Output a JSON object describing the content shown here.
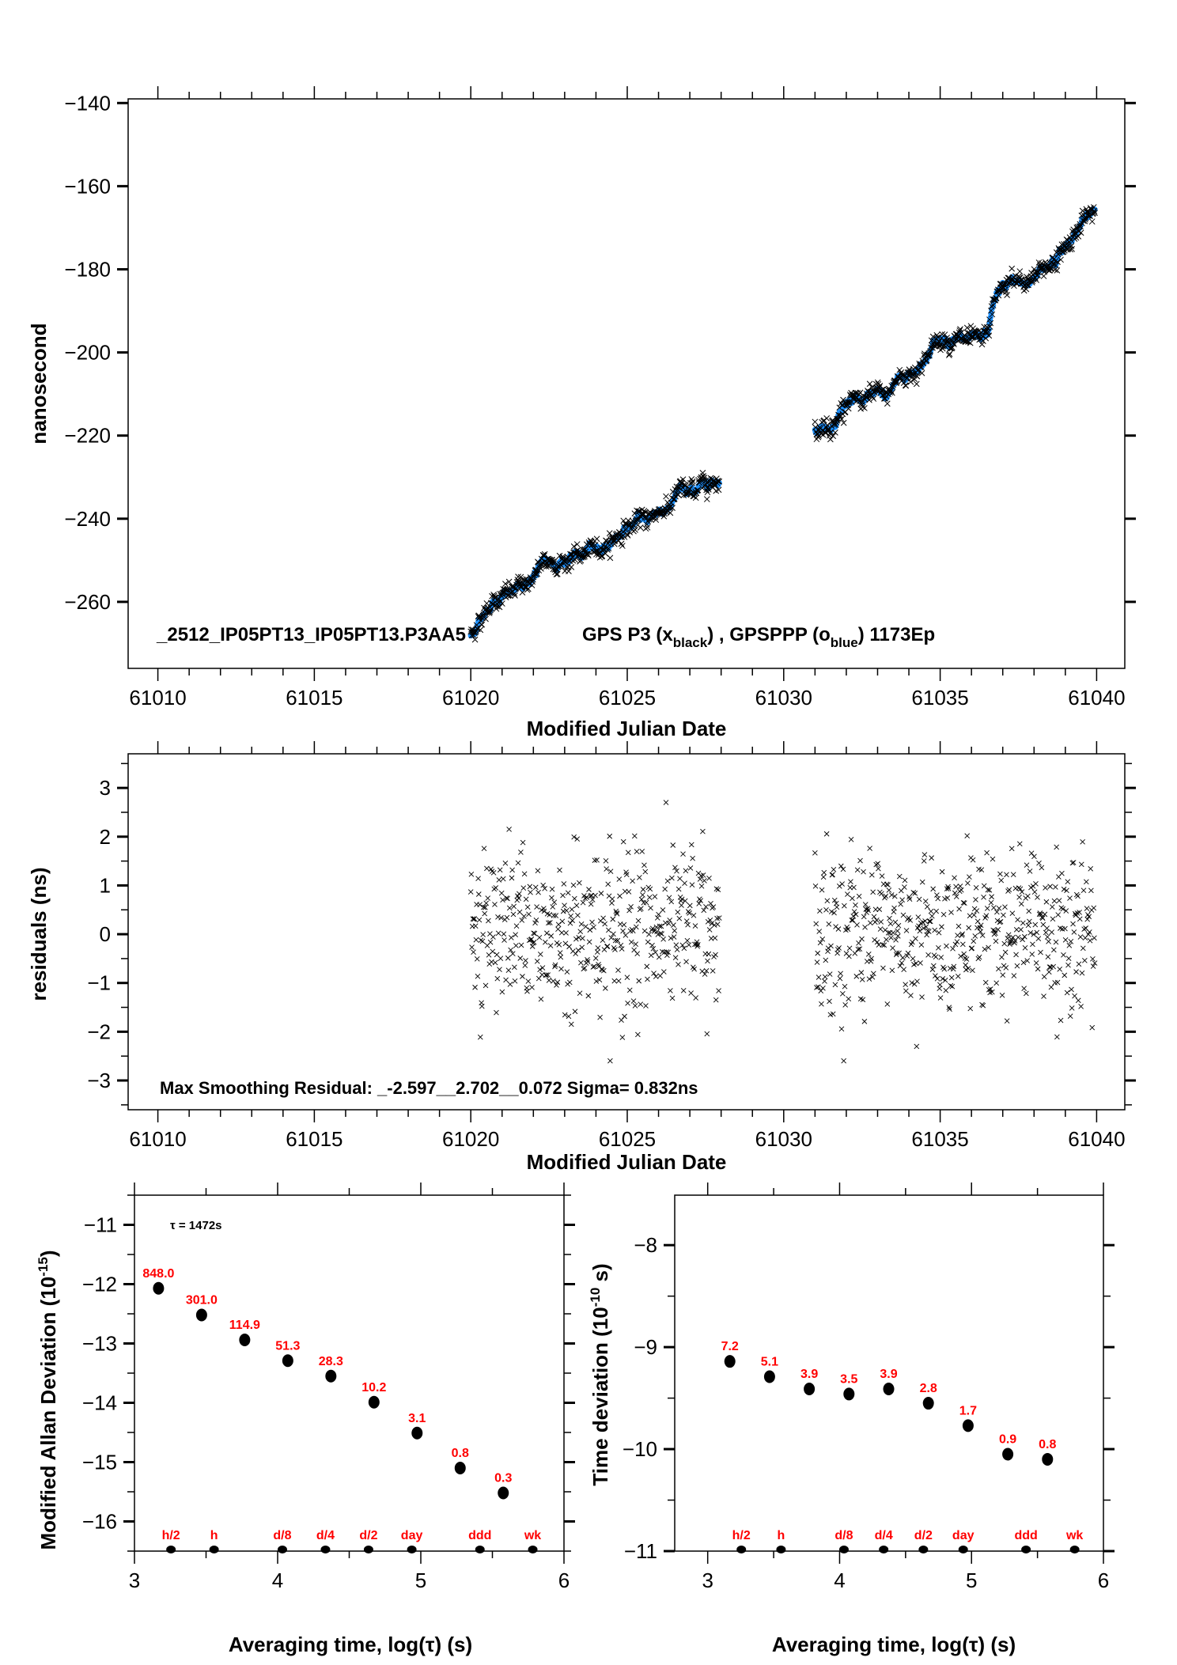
{
  "chart_data": [
    {
      "id": "phase",
      "type": "scatter",
      "title": "",
      "xlabel": "Modified Julian Date",
      "ylabel": "nanosecond",
      "xlim": [
        61009.05,
        61040.9
      ],
      "ylim": [
        -276,
        -139
      ],
      "xticks": [
        61010,
        61015,
        61020,
        61025,
        61030,
        61035,
        61040
      ],
      "xtick_labels": [
        "61010",
        "61015",
        "61020",
        "61025",
        "61030",
        "61035",
        "61040"
      ],
      "yticks": [
        -140,
        -160,
        -180,
        -200,
        -220,
        -240,
        -260
      ],
      "ytick_labels": [
        "−140",
        "−160",
        "−180",
        "−200",
        "−220",
        "−240",
        "−260"
      ],
      "annotation": {
        "station": "_2512_IP05PT13_IP05PT13.P3AA5",
        "legend_prefix": "GPS P3 (x",
        "legend_sub1": "black",
        "legend_mid": ") ,  GPSPPP (o",
        "legend_sub2": "blue",
        "legend_suffix": ")  1173Ep"
      },
      "series": [
        {
          "name": "GPS P3",
          "marker": "x",
          "color": "#000000",
          "segments": [
            {
              "x_start": 61020.0,
              "x_end": 61027.95,
              "waypoints": [
                [
                  61020.0,
                  -268
                ],
                [
                  61020.4,
                  -263
                ],
                [
                  61020.7,
                  -259.5
                ],
                [
                  61021.5,
                  -257
                ],
                [
                  61022.0,
                  -254
                ],
                [
                  61022.3,
                  -251
                ],
                [
                  61023.0,
                  -250
                ],
                [
                  61023.6,
                  -248.5
                ],
                [
                  61024.2,
                  -247
                ],
                [
                  61025.0,
                  -242
                ],
                [
                  61025.6,
                  -240
                ],
                [
                  61026.3,
                  -237
                ],
                [
                  61026.7,
                  -233
                ],
                [
                  61027.0,
                  -234
                ],
                [
                  61027.4,
                  -231.5
                ],
                [
                  61027.95,
                  -230
                ]
              ]
            },
            {
              "x_start": 61031.0,
              "x_end": 61039.95,
              "waypoints": [
                [
                  61031.0,
                  -219
                ],
                [
                  61031.6,
                  -217
                ],
                [
                  61032.0,
                  -212
                ],
                [
                  61032.5,
                  -212
                ],
                [
                  61033.0,
                  -210
                ],
                [
                  61033.3,
                  -210.5
                ],
                [
                  61033.6,
                  -206.5
                ],
                [
                  61034.3,
                  -204
                ],
                [
                  61034.8,
                  -198
                ],
                [
                  61035.2,
                  -196.5
                ],
                [
                  61035.7,
                  -197
                ],
                [
                  61036.3,
                  -198
                ],
                [
                  61036.5,
                  -196
                ],
                [
                  61036.8,
                  -186
                ],
                [
                  61037.3,
                  -183
                ],
                [
                  61037.7,
                  -183.5
                ],
                [
                  61038.2,
                  -180
                ],
                [
                  61038.8,
                  -177
                ],
                [
                  61039.3,
                  -171
                ],
                [
                  61039.95,
                  -166
                ]
              ]
            }
          ],
          "sample_step_days": 0.017,
          "noise_sigma_ns": 0.832
        },
        {
          "name": "GPSPPP",
          "marker": "o",
          "color": "#1e90ff",
          "segments": "same as GPS P3 (smoothed)"
        }
      ]
    },
    {
      "id": "residuals",
      "type": "scatter",
      "xlabel": "Modified Julian Date",
      "ylabel": "residuals (ns)",
      "xlim": [
        61009.05,
        61040.9
      ],
      "ylim": [
        -3.6,
        3.7
      ],
      "xticks": [
        61010,
        61015,
        61020,
        61025,
        61030,
        61035,
        61040
      ],
      "xtick_labels": [
        "61010",
        "61015",
        "61020",
        "61025",
        "61030",
        "61035",
        "61040"
      ],
      "yticks": [
        3,
        2,
        1,
        0,
        -1,
        -2,
        -3
      ],
      "ytick_labels": [
        "3",
        "2",
        "1",
        "0",
        "−1",
        "−2",
        "−3"
      ],
      "annotation": "Max Smoothing Residual: _-2.597__2.702__0.072  Sigma= 0.832ns",
      "stats": {
        "min": -2.597,
        "max": 2.702,
        "mean": 0.072,
        "sigma": 0.832
      },
      "segments": [
        {
          "x_start": 61020.0,
          "x_end": 61027.95
        },
        {
          "x_start": 61031.0,
          "x_end": 61039.95
        }
      ],
      "marker": "x",
      "color": "#000000"
    },
    {
      "id": "mdev",
      "type": "scatter",
      "xlabel": "Averaging time, log(τ) (s)",
      "ylabel": "Modified Allan Deviation (10",
      "ylabel_sup": "-15",
      "ylabel_end": ")",
      "xlim": [
        3,
        6
      ],
      "ylim": [
        -16.5,
        -10.5
      ],
      "xticks": [
        3,
        4,
        5,
        6
      ],
      "xtick_labels": [
        "3",
        "4",
        "5",
        "6"
      ],
      "yticks": [
        -11,
        -12,
        -13,
        -14,
        -15,
        -16
      ],
      "ytick_labels": [
        "−11",
        "−12",
        "−13",
        "−14",
        "−15",
        "−16"
      ],
      "tau_note": "τ = 1472s",
      "x": [
        3.168,
        3.469,
        3.77,
        4.071,
        4.372,
        4.673,
        4.974,
        5.275,
        5.576
      ],
      "y": [
        -12.07,
        -12.52,
        -12.94,
        -13.29,
        -13.55,
        -13.99,
        -14.51,
        -15.1,
        -15.52
      ],
      "point_labels": [
        "848.0",
        "301.0",
        "114.9",
        "51.3",
        "28.3",
        "10.2",
        "3.1",
        "0.8",
        "0.3"
      ],
      "markers": [
        {
          "label": "h/2",
          "x": 3.255
        },
        {
          "label": "h",
          "x": 3.556
        },
        {
          "label": "d/8",
          "x": 4.033
        },
        {
          "label": "d/4",
          "x": 4.334
        },
        {
          "label": "d/2",
          "x": 4.635
        },
        {
          "label": "day",
          "x": 4.937
        },
        {
          "label": "ddd",
          "x": 5.413
        },
        {
          "label": "wk",
          "x": 5.782
        }
      ]
    },
    {
      "id": "tdev",
      "type": "scatter",
      "xlabel": "Averaging time, log(τ) (s)",
      "ylabel": "Time deviation (10",
      "ylabel_sup": "-10",
      "ylabel_end": " s)",
      "xlim": [
        2.75,
        6
      ],
      "ylim": [
        -11,
        -7.51
      ],
      "xticks": [
        3,
        4,
        5,
        6
      ],
      "xtick_labels": [
        "3",
        "4",
        "5",
        "6"
      ],
      "yticks": [
        -8,
        -9,
        -10,
        -11
      ],
      "ytick_labels": [
        "−8",
        "−9",
        "−10",
        "−11"
      ],
      "x": [
        3.168,
        3.469,
        3.77,
        4.071,
        4.372,
        4.673,
        4.974,
        5.275,
        5.576
      ],
      "y": [
        -9.14,
        -9.29,
        -9.41,
        -9.46,
        -9.41,
        -9.55,
        -9.77,
        -10.05,
        -10.1
      ],
      "point_labels": [
        "7.2",
        "5.1",
        "3.9",
        "3.5",
        "3.9",
        "2.8",
        "1.7",
        "0.9",
        "0.8"
      ],
      "markers": [
        {
          "label": "h/2",
          "x": 3.255
        },
        {
          "label": "h",
          "x": 3.556
        },
        {
          "label": "d/8",
          "x": 4.033
        },
        {
          "label": "d/4",
          "x": 4.334
        },
        {
          "label": "d/2",
          "x": 4.635
        },
        {
          "label": "day",
          "x": 4.937
        },
        {
          "label": "ddd",
          "x": 5.413
        },
        {
          "label": "wk",
          "x": 5.782
        }
      ]
    }
  ]
}
